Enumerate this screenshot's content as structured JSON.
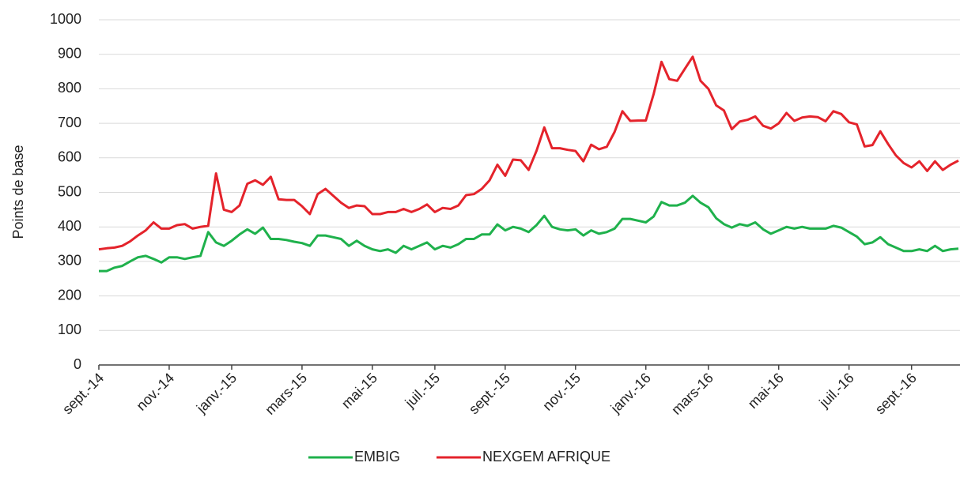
{
  "chart_data": {
    "type": "line",
    "y_label": "Points de base",
    "categories": [
      "sept.-14",
      null,
      null,
      null,
      null,
      null,
      null,
      null,
      null,
      "nov.-14",
      null,
      null,
      null,
      null,
      null,
      null,
      null,
      "janv.-15",
      null,
      null,
      null,
      null,
      null,
      null,
      null,
      null,
      "mars-15",
      null,
      null,
      null,
      null,
      null,
      null,
      null,
      null,
      "mai-15",
      null,
      null,
      null,
      null,
      null,
      null,
      null,
      "juil.-15",
      null,
      null,
      null,
      null,
      null,
      null,
      null,
      null,
      "sept.-15",
      null,
      null,
      null,
      null,
      null,
      null,
      null,
      null,
      "nov.-15",
      null,
      null,
      null,
      null,
      null,
      null,
      null,
      null,
      "janv.-16",
      null,
      null,
      null,
      null,
      null,
      null,
      null,
      "mars-16",
      null,
      null,
      null,
      null,
      null,
      null,
      null,
      null,
      "mai-16",
      null,
      null,
      null,
      null,
      null,
      null,
      null,
      null,
      "juil.-16",
      null,
      null,
      null,
      null,
      null,
      null,
      null,
      "sept.-16",
      null,
      null,
      null,
      null,
      null,
      null
    ],
    "series": [
      {
        "name": "EMBIG",
        "color": "#1fb14c",
        "values": [
          272,
          272,
          282,
          287,
          300,
          312,
          316,
          307,
          297,
          312,
          312,
          307,
          312,
          316,
          385,
          355,
          345,
          360,
          378,
          393,
          380,
          398,
          365,
          365,
          362,
          357,
          353,
          345,
          375,
          375,
          370,
          365,
          345,
          360,
          345,
          335,
          330,
          335,
          325,
          345,
          335,
          345,
          355,
          335,
          345,
          340,
          350,
          365,
          365,
          378,
          378,
          407,
          390,
          400,
          395,
          385,
          405,
          432,
          400,
          393,
          390,
          393,
          375,
          390,
          380,
          385,
          395,
          423,
          423,
          418,
          413,
          430,
          472,
          462,
          462,
          470,
          490,
          470,
          457,
          425,
          408,
          398,
          408,
          403,
          413,
          393,
          380,
          390,
          400,
          395,
          400,
          395,
          395,
          395,
          403,
          398,
          385,
          372,
          350,
          355,
          370,
          350,
          340,
          330,
          330,
          335,
          330,
          345,
          330,
          335,
          337
        ]
      },
      {
        "name": "NEXGEM AFRIQUE",
        "color": "#e4232b",
        "values": [
          335,
          338,
          340,
          345,
          358,
          375,
          390,
          413,
          395,
          395,
          405,
          408,
          395,
          400,
          403,
          555,
          450,
          443,
          462,
          525,
          535,
          522,
          545,
          480,
          478,
          478,
          460,
          437,
          495,
          510,
          490,
          470,
          455,
          462,
          460,
          437,
          437,
          443,
          443,
          452,
          443,
          452,
          465,
          443,
          455,
          452,
          462,
          492,
          495,
          510,
          535,
          580,
          548,
          595,
          593,
          565,
          620,
          688,
          628,
          628,
          623,
          620,
          590,
          638,
          625,
          632,
          675,
          735,
          707,
          708,
          708,
          785,
          878,
          828,
          823,
          858,
          893,
          823,
          800,
          752,
          737,
          683,
          705,
          710,
          720,
          693,
          685,
          700,
          730,
          707,
          717,
          720,
          718,
          706,
          735,
          727,
          703,
          697,
          633,
          637,
          677,
          640,
          607,
          585,
          572,
          590,
          562,
          590,
          565,
          580,
          592
        ]
      }
    ],
    "ylim": [
      0,
      1000
    ],
    "yticks": [
      0,
      100,
      200,
      300,
      400,
      500,
      600,
      700,
      800,
      900,
      1000
    ],
    "grid": true,
    "legend": "bottom"
  }
}
